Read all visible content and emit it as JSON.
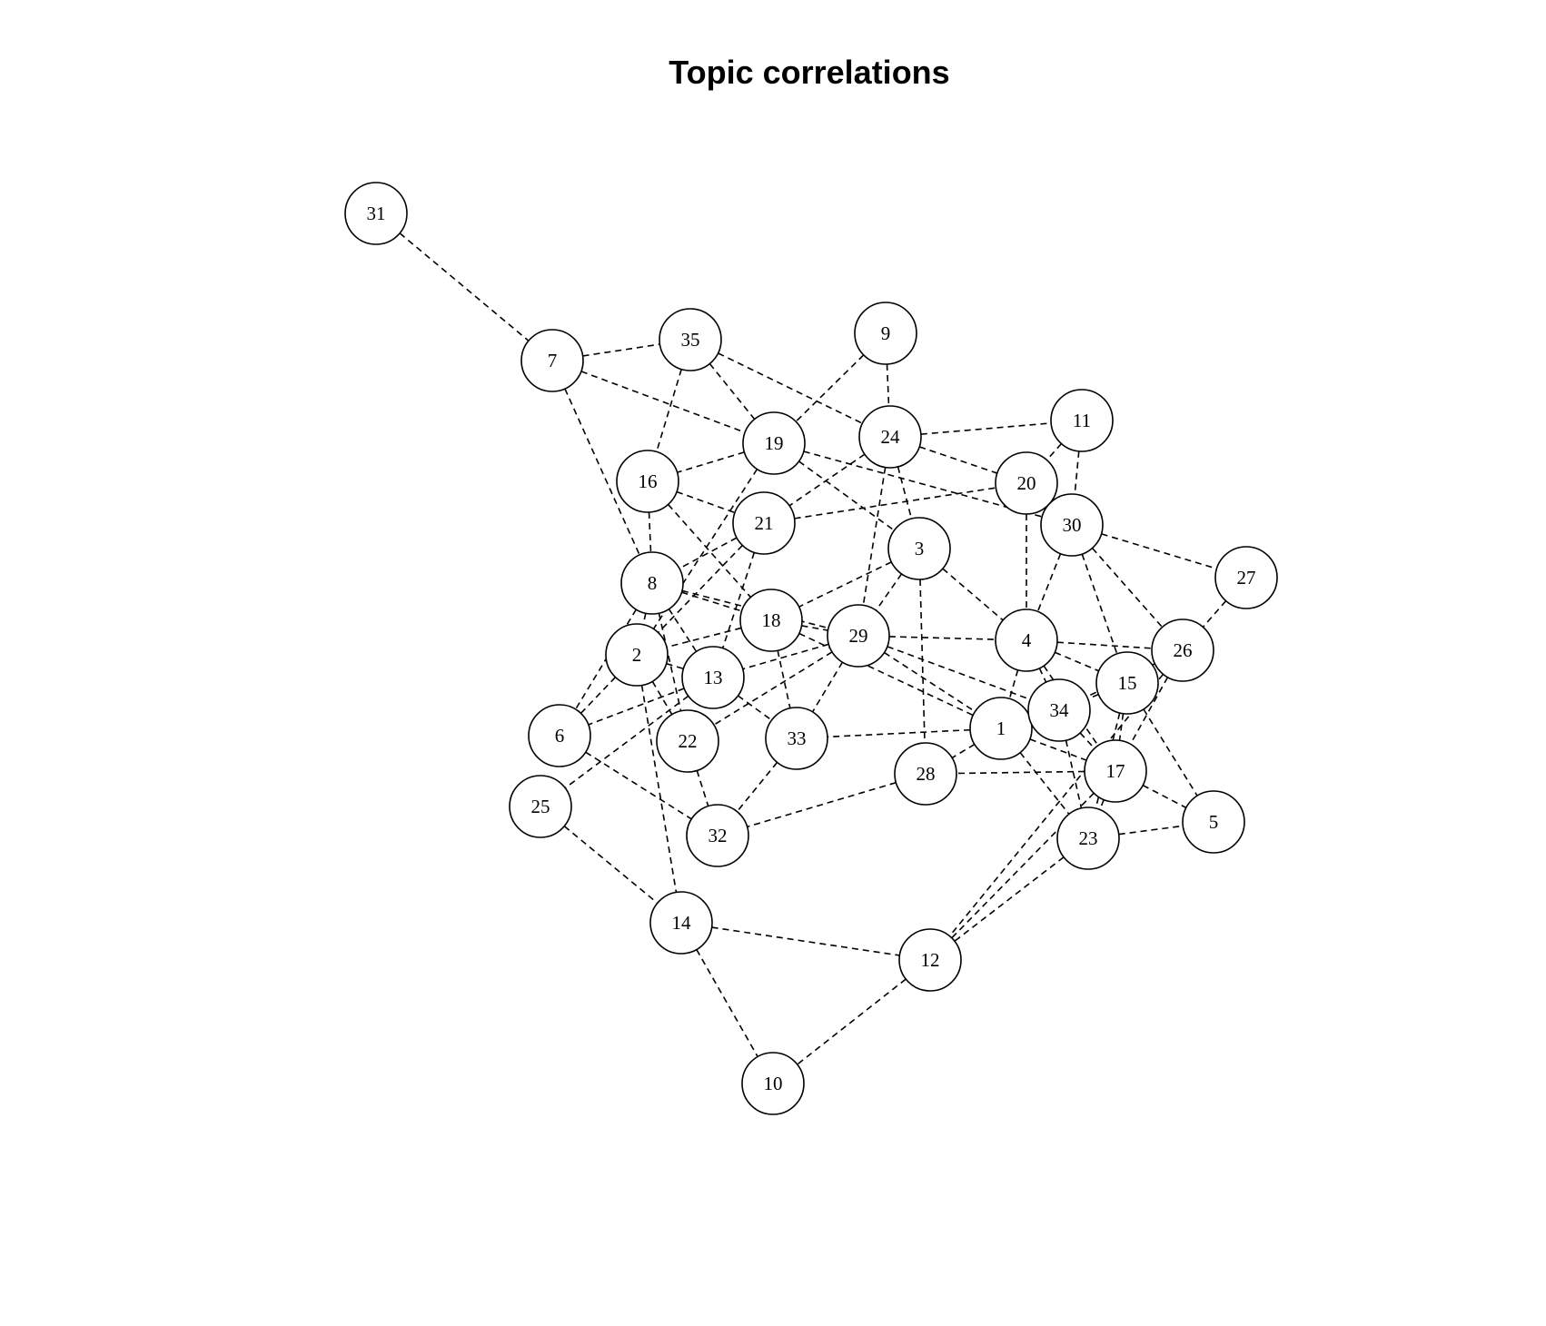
{
  "title": "Topic correlations",
  "nodes": [
    {
      "id": "1"
    },
    {
      "id": "2"
    },
    {
      "id": "3"
    },
    {
      "id": "4"
    },
    {
      "id": "5"
    },
    {
      "id": "6"
    },
    {
      "id": "7"
    },
    {
      "id": "8"
    },
    {
      "id": "9"
    },
    {
      "id": "10"
    },
    {
      "id": "11"
    },
    {
      "id": "12"
    },
    {
      "id": "13"
    },
    {
      "id": "14"
    },
    {
      "id": "15"
    },
    {
      "id": "16"
    },
    {
      "id": "17"
    },
    {
      "id": "18"
    },
    {
      "id": "19"
    },
    {
      "id": "20"
    },
    {
      "id": "21"
    },
    {
      "id": "22"
    },
    {
      "id": "23"
    },
    {
      "id": "24"
    },
    {
      "id": "25"
    },
    {
      "id": "26"
    },
    {
      "id": "27"
    },
    {
      "id": "28"
    },
    {
      "id": "29"
    },
    {
      "id": "30"
    },
    {
      "id": "31"
    },
    {
      "id": "32"
    },
    {
      "id": "33"
    },
    {
      "id": "34"
    },
    {
      "id": "35"
    }
  ],
  "edges": [
    [
      "31",
      "7"
    ],
    [
      "7",
      "35"
    ],
    [
      "7",
      "19"
    ],
    [
      "7",
      "8"
    ],
    [
      "35",
      "16"
    ],
    [
      "35",
      "19"
    ],
    [
      "35",
      "24"
    ],
    [
      "9",
      "19"
    ],
    [
      "9",
      "24"
    ],
    [
      "24",
      "11"
    ],
    [
      "24",
      "20"
    ],
    [
      "24",
      "3"
    ],
    [
      "24",
      "29"
    ],
    [
      "24",
      "21"
    ],
    [
      "19",
      "16"
    ],
    [
      "19",
      "3"
    ],
    [
      "19",
      "30"
    ],
    [
      "19",
      "2"
    ],
    [
      "16",
      "21"
    ],
    [
      "16",
      "8"
    ],
    [
      "16",
      "18"
    ],
    [
      "21",
      "20"
    ],
    [
      "21",
      "8"
    ],
    [
      "21",
      "13"
    ],
    [
      "21",
      "2"
    ],
    [
      "11",
      "30"
    ],
    [
      "11",
      "20"
    ],
    [
      "20",
      "4"
    ],
    [
      "30",
      "4"
    ],
    [
      "30",
      "27"
    ],
    [
      "30",
      "26"
    ],
    [
      "30",
      "15"
    ],
    [
      "3",
      "18"
    ],
    [
      "3",
      "29"
    ],
    [
      "3",
      "4"
    ],
    [
      "3",
      "28"
    ],
    [
      "8",
      "18"
    ],
    [
      "8",
      "29"
    ],
    [
      "8",
      "13"
    ],
    [
      "8",
      "2"
    ],
    [
      "8",
      "22"
    ],
    [
      "8",
      "6"
    ],
    [
      "18",
      "2"
    ],
    [
      "18",
      "29"
    ],
    [
      "18",
      "1"
    ],
    [
      "18",
      "33"
    ],
    [
      "29",
      "13"
    ],
    [
      "29",
      "33"
    ],
    [
      "29",
      "4"
    ],
    [
      "29",
      "1"
    ],
    [
      "29",
      "22"
    ],
    [
      "29",
      "34"
    ],
    [
      "4",
      "26"
    ],
    [
      "4",
      "15"
    ],
    [
      "4",
      "1"
    ],
    [
      "4",
      "17"
    ],
    [
      "4",
      "34"
    ],
    [
      "27",
      "26"
    ],
    [
      "26",
      "34"
    ],
    [
      "26",
      "17"
    ],
    [
      "26",
      "12"
    ],
    [
      "15",
      "34"
    ],
    [
      "15",
      "17"
    ],
    [
      "15",
      "5"
    ],
    [
      "15",
      "23"
    ],
    [
      "34",
      "17"
    ],
    [
      "34",
      "23"
    ],
    [
      "34",
      "1"
    ],
    [
      "1",
      "33"
    ],
    [
      "1",
      "28"
    ],
    [
      "1",
      "17"
    ],
    [
      "1",
      "23"
    ],
    [
      "17",
      "28"
    ],
    [
      "17",
      "5"
    ],
    [
      "17",
      "23"
    ],
    [
      "17",
      "12"
    ],
    [
      "23",
      "5"
    ],
    [
      "23",
      "12"
    ],
    [
      "2",
      "6"
    ],
    [
      "2",
      "13"
    ],
    [
      "2",
      "14"
    ],
    [
      "2",
      "22"
    ],
    [
      "13",
      "6"
    ],
    [
      "13",
      "25"
    ],
    [
      "13",
      "33"
    ],
    [
      "6",
      "32"
    ],
    [
      "22",
      "32"
    ],
    [
      "33",
      "32"
    ],
    [
      "28",
      "32"
    ],
    [
      "25",
      "14"
    ],
    [
      "14",
      "12"
    ],
    [
      "14",
      "10"
    ],
    [
      "12",
      "10"
    ]
  ]
}
